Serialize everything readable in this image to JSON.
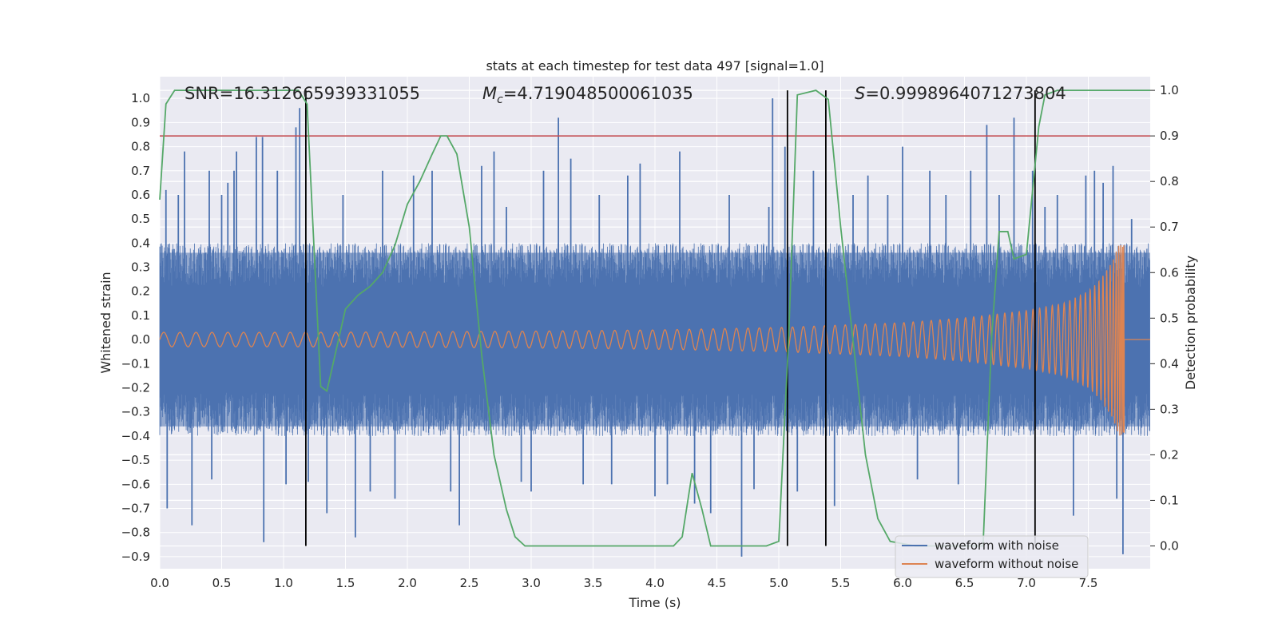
{
  "chart_data": {
    "type": "line",
    "title": "stats at each timestep for test data 497 [signal=1.0]",
    "xlabel": "Time (s)",
    "ylabel": "Whitened strain",
    "ylabel_right": "Detection probability",
    "xlim": [
      0.0,
      8.0
    ],
    "ylim": [
      -0.95,
      1.09
    ],
    "ylim_right": [
      -0.05,
      1.03
    ],
    "xticks": [
      0.0,
      0.5,
      1.0,
      1.5,
      2.0,
      2.5,
      3.0,
      3.5,
      4.0,
      4.5,
      5.0,
      5.5,
      6.0,
      6.5,
      7.0,
      7.5
    ],
    "xtick_labels": [
      "0.0",
      "0.5",
      "1.0",
      "1.5",
      "2.0",
      "2.5",
      "3.0",
      "3.5",
      "4.0",
      "4.5",
      "5.0",
      "5.5",
      "6.0",
      "6.5",
      "7.0",
      "7.5"
    ],
    "yticks": [
      -0.9,
      -0.8,
      -0.7,
      -0.6,
      -0.5,
      -0.4,
      -0.3,
      -0.2,
      -0.1,
      0.0,
      0.1,
      0.2,
      0.3,
      0.4,
      0.5,
      0.6,
      0.7,
      0.8,
      0.9,
      1.0
    ],
    "ytick_labels": [
      "−0.9",
      "−0.8",
      "−0.7",
      "−0.6",
      "−0.5",
      "−0.4",
      "−0.3",
      "−0.2",
      "−0.1",
      "0.0",
      "0.1",
      "0.2",
      "0.3",
      "0.4",
      "0.5",
      "0.6",
      "0.7",
      "0.8",
      "0.9",
      "1.0"
    ],
    "yticks_right": [
      0.0,
      0.1,
      0.2,
      0.3,
      0.4,
      0.5,
      0.6,
      0.7,
      0.8,
      0.9,
      1.0
    ],
    "ytick_labels_right": [
      "0.0",
      "0.1",
      "0.2",
      "0.3",
      "0.4",
      "0.5",
      "0.6",
      "0.7",
      "0.8",
      "0.9",
      "1.0"
    ],
    "annotations": {
      "snr": "SNR=16.312665939331055",
      "mc_symbol": "M",
      "mc_sub": "c",
      "mc_value": "=4.719048500061035",
      "s_symbol": "S",
      "s_value": "=0.9998964071273804"
    },
    "legend": {
      "location": "lower-right",
      "entries": [
        "waveform with noise",
        "waveform without noise"
      ]
    },
    "series": [
      {
        "name": "waveform with noise",
        "axis": "left",
        "noise_band": [
          -0.4,
          0.4
        ],
        "peaks": [
          [
            0.05,
            0.62
          ],
          [
            0.06,
            -0.7
          ],
          [
            0.15,
            0.6
          ],
          [
            0.2,
            0.78
          ],
          [
            0.26,
            -0.77
          ],
          [
            0.4,
            0.7
          ],
          [
            0.42,
            -0.58
          ],
          [
            0.5,
            0.6
          ],
          [
            0.55,
            0.65
          ],
          [
            0.6,
            0.7
          ],
          [
            0.62,
            0.78
          ],
          [
            0.78,
            0.84
          ],
          [
            0.83,
            0.84
          ],
          [
            0.84,
            -0.84
          ],
          [
            0.95,
            0.7
          ],
          [
            1.02,
            -0.6
          ],
          [
            1.1,
            0.88
          ],
          [
            1.13,
            0.96
          ],
          [
            1.2,
            -0.59
          ],
          [
            1.35,
            -0.72
          ],
          [
            1.48,
            0.6
          ],
          [
            1.58,
            -0.82
          ],
          [
            1.7,
            -0.63
          ],
          [
            1.8,
            0.7
          ],
          [
            1.9,
            -0.66
          ],
          [
            2.05,
            0.68
          ],
          [
            2.2,
            0.7
          ],
          [
            2.35,
            -0.63
          ],
          [
            2.42,
            -0.77
          ],
          [
            2.6,
            0.72
          ],
          [
            2.7,
            0.78
          ],
          [
            2.8,
            0.55
          ],
          [
            2.92,
            -0.59
          ],
          [
            3.0,
            -0.63
          ],
          [
            3.1,
            0.7
          ],
          [
            3.22,
            0.92
          ],
          [
            3.32,
            0.75
          ],
          [
            3.42,
            -0.6
          ],
          [
            3.55,
            0.6
          ],
          [
            3.65,
            -0.6
          ],
          [
            3.78,
            0.68
          ],
          [
            3.88,
            0.73
          ],
          [
            4.0,
            -0.65
          ],
          [
            4.1,
            -0.6
          ],
          [
            4.2,
            0.78
          ],
          [
            4.32,
            -0.68
          ],
          [
            4.45,
            -0.72
          ],
          [
            4.6,
            0.6
          ],
          [
            4.7,
            -0.9
          ],
          [
            4.8,
            -0.62
          ],
          [
            4.92,
            0.55
          ],
          [
            4.95,
            1.0
          ],
          [
            5.05,
            0.8
          ],
          [
            5.15,
            -0.63
          ],
          [
            5.28,
            0.7
          ],
          [
            5.45,
            -0.69
          ],
          [
            5.6,
            0.6
          ],
          [
            5.72,
            0.68
          ],
          [
            5.88,
            0.6
          ],
          [
            6.0,
            0.8
          ],
          [
            6.12,
            -0.58
          ],
          [
            6.22,
            0.7
          ],
          [
            6.35,
            0.6
          ],
          [
            6.45,
            -0.6
          ],
          [
            6.55,
            0.7
          ],
          [
            6.68,
            0.89
          ],
          [
            6.78,
            0.6
          ],
          [
            6.9,
            0.92
          ],
          [
            7.05,
            0.7
          ],
          [
            7.15,
            0.55
          ],
          [
            7.25,
            0.6
          ],
          [
            7.38,
            -0.73
          ],
          [
            7.48,
            0.68
          ],
          [
            7.55,
            0.7
          ],
          [
            7.62,
            0.65
          ],
          [
            7.7,
            0.72
          ],
          [
            7.73,
            -0.66
          ],
          [
            7.78,
            -0.89
          ],
          [
            7.85,
            0.5
          ]
        ]
      },
      {
        "name": "waveform without noise",
        "axis": "left",
        "envelope": {
          "t": [
            0.0,
            1.0,
            2.0,
            3.0,
            4.0,
            5.0,
            5.5,
            6.0,
            6.5,
            7.0,
            7.3,
            7.5,
            7.6,
            7.7,
            7.75,
            7.79
          ],
          "amplitude": [
            0.03,
            0.03,
            0.032,
            0.035,
            0.04,
            0.05,
            0.06,
            0.07,
            0.09,
            0.12,
            0.15,
            0.2,
            0.25,
            0.33,
            0.4,
            0.39
          ]
        },
        "merger_time": 7.79,
        "cycles": 95
      },
      {
        "name": "detection probability",
        "axis": "right",
        "x": [
          0.0,
          0.05,
          0.12,
          0.2,
          0.5,
          0.8,
          1.0,
          1.12,
          1.19,
          1.3,
          1.35,
          1.4,
          1.5,
          1.6,
          1.7,
          1.8,
          1.9,
          2.0,
          2.1,
          2.2,
          2.27,
          2.32,
          2.4,
          2.5,
          2.6,
          2.7,
          2.8,
          2.87,
          2.95,
          3.1,
          3.5,
          4.0,
          4.15,
          4.22,
          4.3,
          4.38,
          4.45,
          4.55,
          4.9,
          5.0,
          5.08,
          5.15,
          5.3,
          5.4,
          5.5,
          5.6,
          5.7,
          5.8,
          5.9,
          6.1,
          6.4,
          6.65,
          6.72,
          6.78,
          6.85,
          6.9,
          7.0,
          7.1,
          7.15,
          7.25,
          7.6,
          8.0
        ],
        "y": [
          0.76,
          0.97,
          1.0,
          1.0,
          1.0,
          1.0,
          1.0,
          1.0,
          0.97,
          0.35,
          0.34,
          0.4,
          0.52,
          0.55,
          0.57,
          0.6,
          0.66,
          0.75,
          0.8,
          0.86,
          0.9,
          0.9,
          0.86,
          0.7,
          0.42,
          0.2,
          0.08,
          0.02,
          0.0,
          0.0,
          0.0,
          0.0,
          0.0,
          0.02,
          0.16,
          0.08,
          0.0,
          0.0,
          0.0,
          0.01,
          0.46,
          0.99,
          1.0,
          0.98,
          0.7,
          0.45,
          0.2,
          0.06,
          0.01,
          0.0,
          0.0,
          0.0,
          0.46,
          0.69,
          0.69,
          0.63,
          0.64,
          0.92,
          0.99,
          1.0,
          1.0,
          1.0
        ]
      }
    ],
    "reference_lines": {
      "threshold_prob": 0.9,
      "event_markers_time": [
        1.18,
        5.07,
        5.38,
        7.07
      ],
      "marker_bottom_prob": 0.0,
      "marker_top_prob": 1.0
    },
    "colors": {
      "noise": "#4c72b0",
      "clean": "#dd8452",
      "prob": "#55a868",
      "threshold": "#c44e52",
      "markers": "#000000",
      "axes_bg": "#eaeaf2",
      "grid": "#ffffff",
      "text": "#262626"
    }
  }
}
